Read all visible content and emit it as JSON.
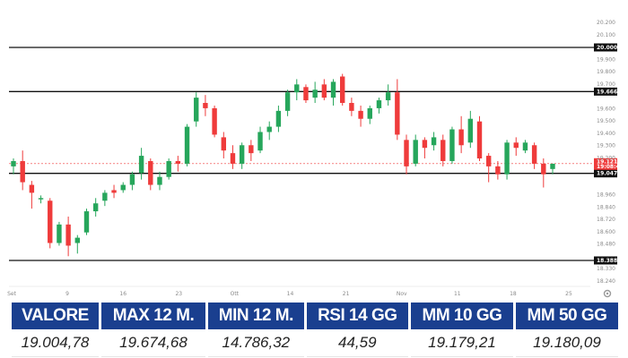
{
  "chart_data": {
    "type": "candlestick",
    "y_ticks": [
      "20.200",
      "20.100",
      "20.000",
      "19.900",
      "19.800",
      "19.700",
      "19.666",
      "19.600",
      "19.500",
      "19.400",
      "19.300",
      "19.200",
      "19.121",
      "19.047",
      "18.960",
      "18.840",
      "18.720",
      "18.600",
      "18.480",
      "18.388",
      "18.330",
      "18.240"
    ],
    "x_ticks": [
      "Set",
      "9",
      "16",
      "23",
      "Ott",
      "14",
      "21",
      "Nov",
      "11",
      "18",
      "25"
    ],
    "ylim": [
      18.2,
      20.25
    ],
    "horizontal_levels": [
      {
        "value": 20.0,
        "label": "20.000"
      },
      {
        "value": 19.666,
        "label": "19.666"
      },
      {
        "value": 19.047,
        "label": "19.047"
      },
      {
        "value": 18.388,
        "label": "18.388"
      }
    ],
    "current_price": {
      "value": 19.121,
      "label": "19.121",
      "sublabel": "19:08:45"
    },
    "colors": {
      "up": "#26a65b",
      "down": "#ef3b3b",
      "level_line": "#111111",
      "current": "#ef3b3b"
    },
    "candles": [
      {
        "o": 19.1,
        "h": 19.16,
        "l": 19.04,
        "c": 19.14
      },
      {
        "o": 19.14,
        "h": 19.22,
        "l": 18.92,
        "c": 18.98
      },
      {
        "o": 18.96,
        "h": 18.99,
        "l": 18.78,
        "c": 18.9
      },
      {
        "o": 18.85,
        "h": 18.88,
        "l": 18.82,
        "c": 18.86
      },
      {
        "o": 18.84,
        "h": 18.86,
        "l": 18.48,
        "c": 18.52
      },
      {
        "o": 18.52,
        "h": 18.68,
        "l": 18.5,
        "c": 18.66
      },
      {
        "o": 18.66,
        "h": 18.72,
        "l": 18.42,
        "c": 18.5
      },
      {
        "o": 18.52,
        "h": 18.58,
        "l": 18.44,
        "c": 18.56
      },
      {
        "o": 18.6,
        "h": 18.78,
        "l": 18.58,
        "c": 18.76
      },
      {
        "o": 18.76,
        "h": 18.86,
        "l": 18.72,
        "c": 18.82
      },
      {
        "o": 18.84,
        "h": 18.92,
        "l": 18.8,
        "c": 18.9
      },
      {
        "o": 18.92,
        "h": 18.96,
        "l": 18.86,
        "c": 18.9
      },
      {
        "o": 18.92,
        "h": 18.98,
        "l": 18.9,
        "c": 18.96
      },
      {
        "o": 18.96,
        "h": 19.06,
        "l": 18.92,
        "c": 19.04
      },
      {
        "o": 19.05,
        "h": 19.24,
        "l": 19.0,
        "c": 19.18
      },
      {
        "o": 19.14,
        "h": 19.16,
        "l": 18.92,
        "c": 18.96
      },
      {
        "o": 18.96,
        "h": 19.06,
        "l": 18.92,
        "c": 19.02
      },
      {
        "o": 19.02,
        "h": 19.16,
        "l": 19.0,
        "c": 19.14
      },
      {
        "o": 19.14,
        "h": 19.18,
        "l": 19.06,
        "c": 19.12
      },
      {
        "o": 19.12,
        "h": 19.42,
        "l": 19.1,
        "c": 19.4
      },
      {
        "o": 19.44,
        "h": 19.66,
        "l": 19.4,
        "c": 19.62
      },
      {
        "o": 19.58,
        "h": 19.64,
        "l": 19.48,
        "c": 19.54
      },
      {
        "o": 19.54,
        "h": 19.56,
        "l": 19.32,
        "c": 19.34
      },
      {
        "o": 19.32,
        "h": 19.36,
        "l": 19.16,
        "c": 19.22
      },
      {
        "o": 19.2,
        "h": 19.26,
        "l": 19.08,
        "c": 19.12
      },
      {
        "o": 19.12,
        "h": 19.28,
        "l": 19.08,
        "c": 19.26
      },
      {
        "o": 19.26,
        "h": 19.3,
        "l": 19.14,
        "c": 19.2
      },
      {
        "o": 19.22,
        "h": 19.4,
        "l": 19.2,
        "c": 19.36
      },
      {
        "o": 19.36,
        "h": 19.44,
        "l": 19.3,
        "c": 19.4
      },
      {
        "o": 19.4,
        "h": 19.56,
        "l": 19.36,
        "c": 19.52
      },
      {
        "o": 19.52,
        "h": 19.68,
        "l": 19.48,
        "c": 19.66
      },
      {
        "o": 19.66,
        "h": 19.76,
        "l": 19.6,
        "c": 19.72
      },
      {
        "o": 19.7,
        "h": 19.72,
        "l": 19.58,
        "c": 19.6
      },
      {
        "o": 19.62,
        "h": 19.74,
        "l": 19.58,
        "c": 19.68
      },
      {
        "o": 19.72,
        "h": 19.76,
        "l": 19.6,
        "c": 19.62
      },
      {
        "o": 19.62,
        "h": 19.76,
        "l": 19.56,
        "c": 19.74
      },
      {
        "o": 19.78,
        "h": 19.8,
        "l": 19.56,
        "c": 19.58
      },
      {
        "o": 19.58,
        "h": 19.62,
        "l": 19.48,
        "c": 19.52
      },
      {
        "o": 19.52,
        "h": 19.56,
        "l": 19.4,
        "c": 19.46
      },
      {
        "o": 19.46,
        "h": 19.56,
        "l": 19.42,
        "c": 19.54
      },
      {
        "o": 19.54,
        "h": 19.62,
        "l": 19.5,
        "c": 19.6
      },
      {
        "o": 19.6,
        "h": 19.72,
        "l": 19.56,
        "c": 19.66
      },
      {
        "o": 19.66,
        "h": 19.76,
        "l": 19.3,
        "c": 19.34
      },
      {
        "o": 19.3,
        "h": 19.34,
        "l": 19.04,
        "c": 19.1
      },
      {
        "o": 19.12,
        "h": 19.34,
        "l": 19.1,
        "c": 19.3
      },
      {
        "o": 19.3,
        "h": 19.32,
        "l": 19.16,
        "c": 19.24
      },
      {
        "o": 19.26,
        "h": 19.36,
        "l": 19.22,
        "c": 19.32
      },
      {
        "o": 19.3,
        "h": 19.34,
        "l": 19.1,
        "c": 19.14
      },
      {
        "o": 19.14,
        "h": 19.4,
        "l": 19.12,
        "c": 19.38
      },
      {
        "o": 19.38,
        "h": 19.48,
        "l": 19.2,
        "c": 19.26
      },
      {
        "o": 19.28,
        "h": 19.52,
        "l": 19.24,
        "c": 19.46
      },
      {
        "o": 19.44,
        "h": 19.48,
        "l": 19.14,
        "c": 19.16
      },
      {
        "o": 19.18,
        "h": 19.2,
        "l": 18.98,
        "c": 19.1
      },
      {
        "o": 19.1,
        "h": 19.14,
        "l": 19.0,
        "c": 19.04
      },
      {
        "o": 19.04,
        "h": 19.3,
        "l": 19.0,
        "c": 19.28
      },
      {
        "o": 19.28,
        "h": 19.32,
        "l": 19.18,
        "c": 19.24
      },
      {
        "o": 19.22,
        "h": 19.3,
        "l": 19.2,
        "c": 19.28
      },
      {
        "o": 19.26,
        "h": 19.28,
        "l": 19.08,
        "c": 19.12
      },
      {
        "o": 19.12,
        "h": 19.16,
        "l": 18.94,
        "c": 19.04
      },
      {
        "o": 19.08,
        "h": 19.12,
        "l": 19.04,
        "c": 19.12
      }
    ]
  },
  "stats": {
    "headers": [
      "VALORE",
      "MAX 12 M.",
      "MIN 12 M.",
      "RSI 14 GG",
      "MM 10 GG",
      "MM 50 GG"
    ],
    "values": [
      "19.004,78",
      "19.674,68",
      "14.786,32",
      "44,59",
      "19.179,21",
      "19.180,09"
    ]
  },
  "settings_icon": "gear-icon"
}
